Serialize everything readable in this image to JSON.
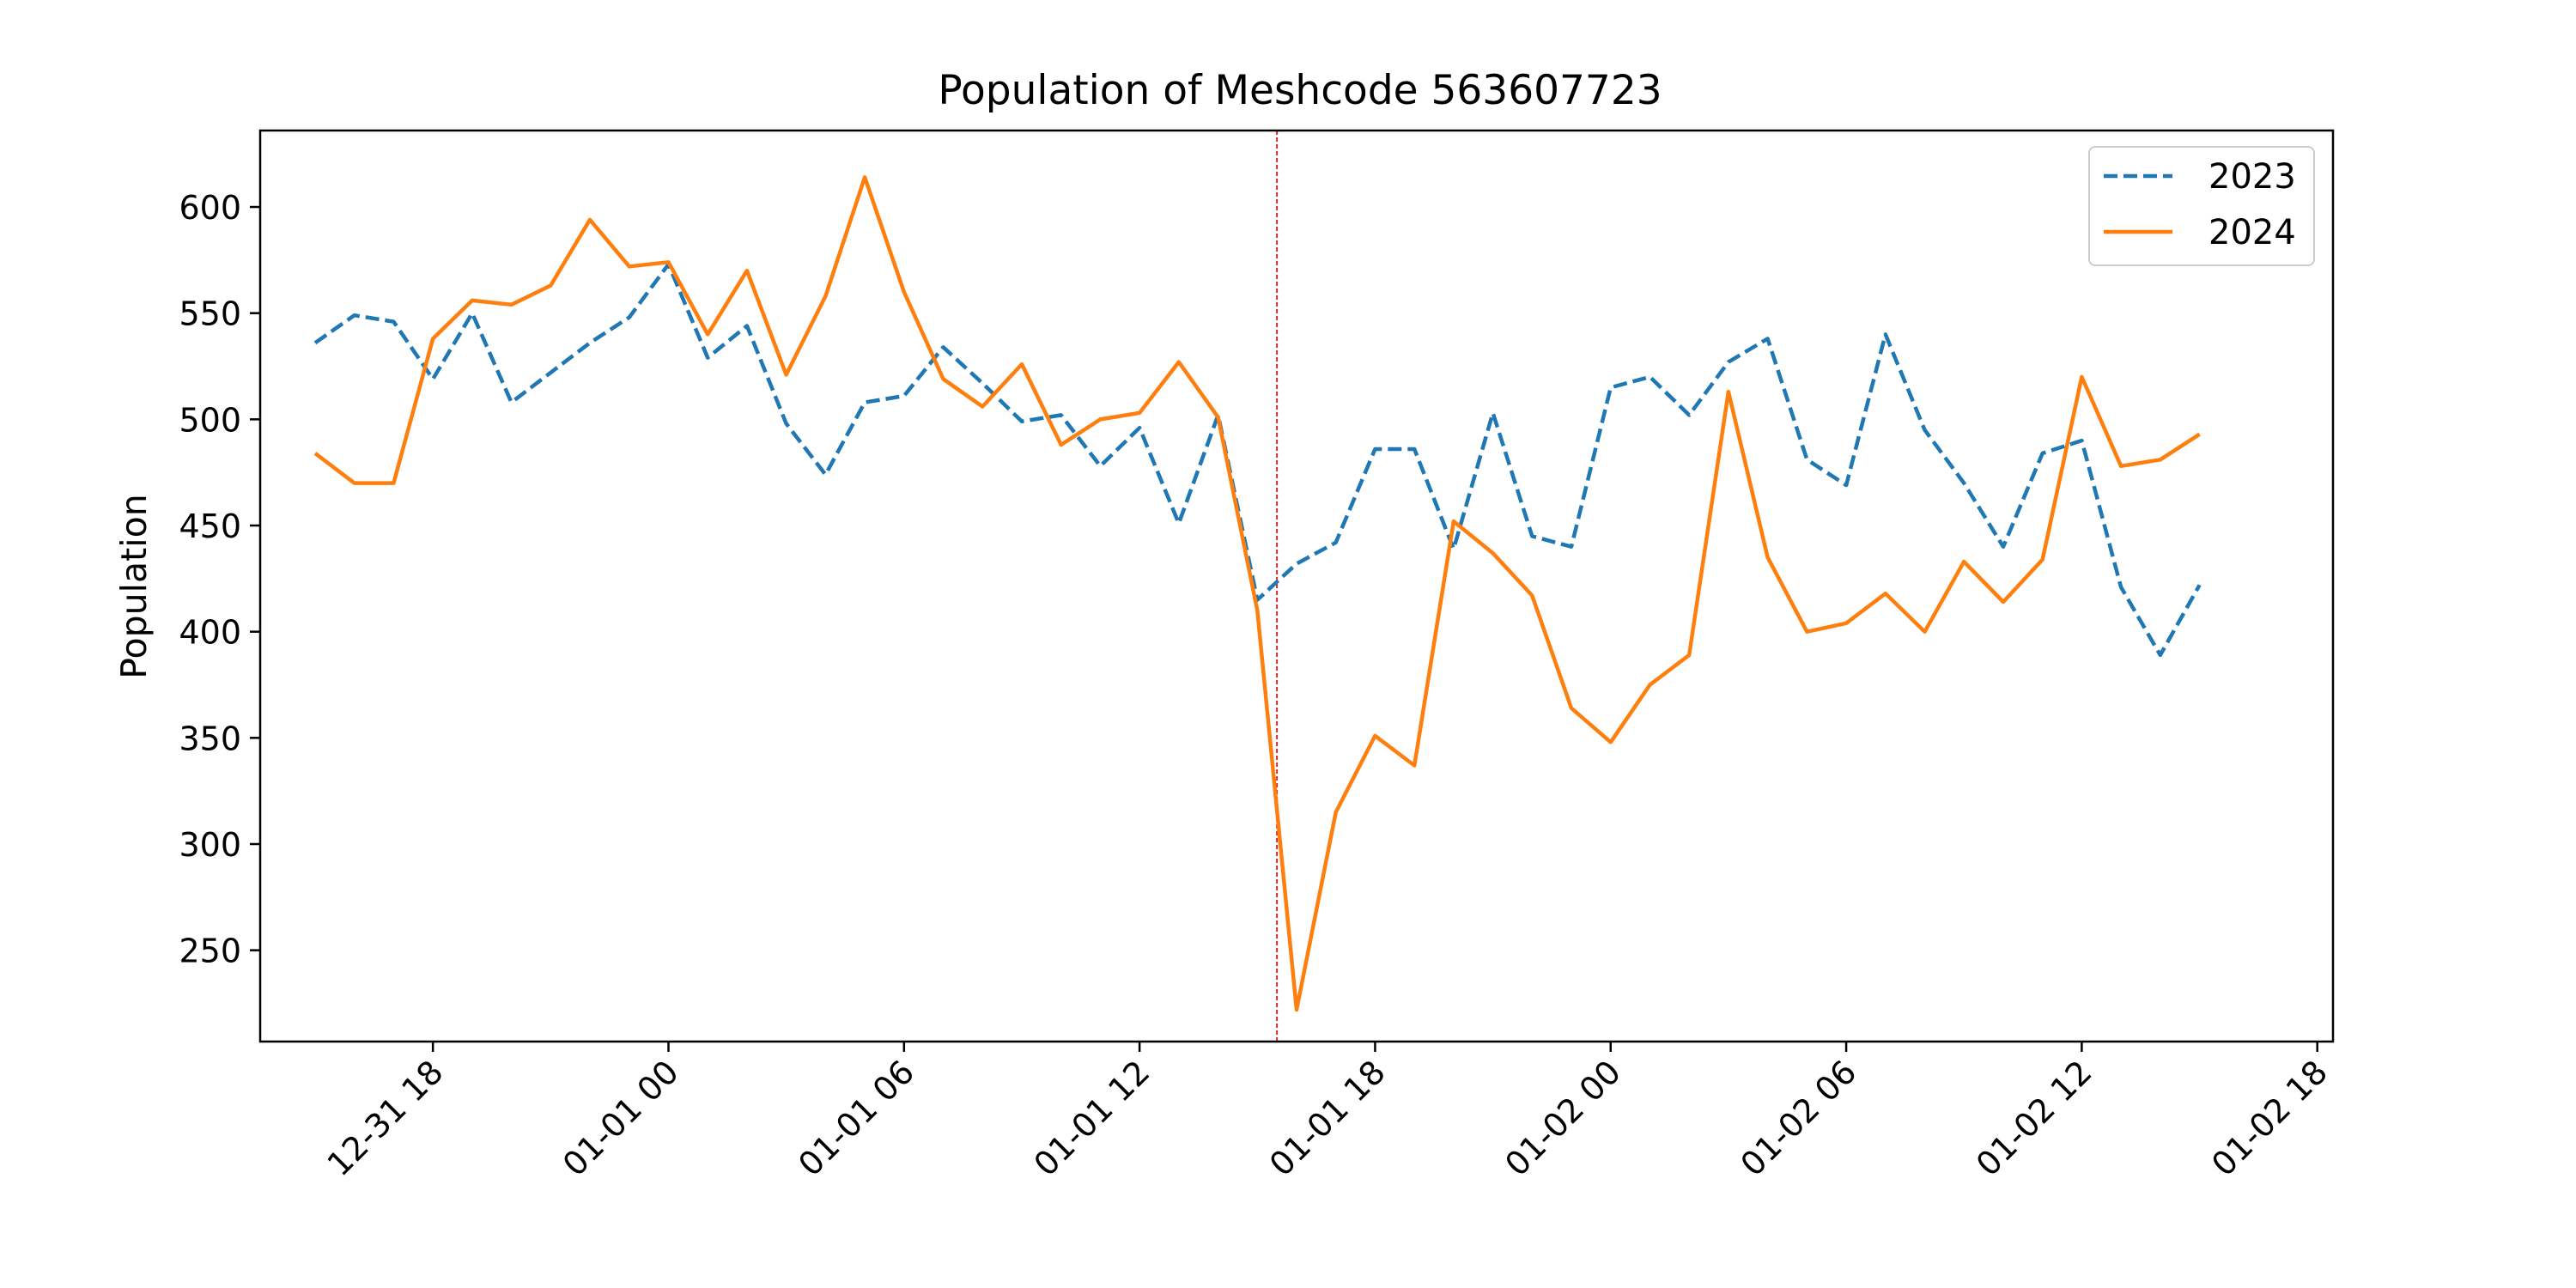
{
  "chart_data": {
    "type": "line",
    "title": "Population of Meshcode 563607723",
    "xlabel": "",
    "ylabel": "Population",
    "x_tick_labels": [
      "12-31 18",
      "01-01 00",
      "01-01 06",
      "01-01 12",
      "01-01 18",
      "01-02 00",
      "01-02 06",
      "01-02 12",
      "01-02 18"
    ],
    "y_ticks": [
      250,
      300,
      350,
      400,
      450,
      500,
      550,
      600
    ],
    "ylim": [
      207,
      636
    ],
    "xlim": [
      "12-31 13:36",
      "01-02 18:24"
    ],
    "x_start": "12-31 15:00",
    "x_step": "1 hour",
    "vline": {
      "x": "01-01 15:30",
      "color": "#d62728",
      "style": "dashed"
    },
    "legend_position": "upper right",
    "series": [
      {
        "name": "2023",
        "color": "#1f77b4",
        "style": "dashed",
        "values": [
          536,
          549,
          546,
          519,
          550,
          508,
          522,
          536,
          548,
          573,
          529,
          544,
          498,
          474,
          508,
          511,
          534,
          517,
          499,
          502,
          478,
          496,
          451,
          502,
          415,
          432,
          442,
          486,
          486,
          439,
          503,
          445,
          440,
          515,
          520,
          502,
          527,
          538,
          481,
          469,
          540,
          495,
          470,
          440,
          484,
          490,
          421,
          389,
          422
        ]
      },
      {
        "name": "2024",
        "color": "#ff7f0e",
        "style": "solid",
        "values": [
          484,
          470,
          470,
          538,
          556,
          554,
          563,
          594,
          572,
          574,
          540,
          570,
          521,
          558,
          614,
          560,
          519,
          506,
          526,
          488,
          500,
          503,
          527,
          501,
          410,
          222,
          315,
          351,
          337,
          452,
          437,
          417,
          364,
          348,
          375,
          389,
          513,
          435,
          400,
          404,
          418,
          400,
          433,
          414,
          434,
          520,
          478,
          481,
          493
        ]
      }
    ]
  }
}
